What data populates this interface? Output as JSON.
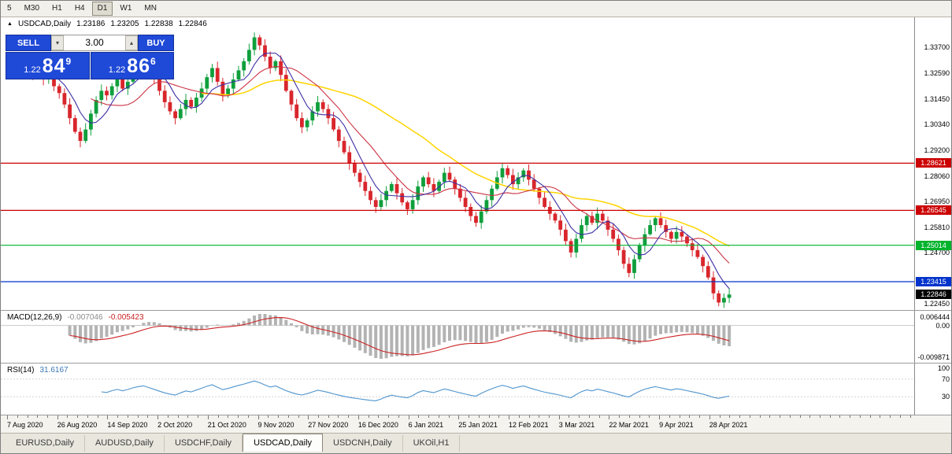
{
  "toolbar": {
    "timeframes": [
      "5",
      "M30",
      "H1",
      "H4",
      "D1",
      "W1",
      "MN"
    ],
    "active": "D1"
  },
  "header": {
    "symbol": "USDCAD,Daily",
    "open": "1.23186",
    "high": "1.23205",
    "low": "1.22838",
    "close": "1.22846"
  },
  "trade_panel": {
    "sell_label": "SELL",
    "buy_label": "BUY",
    "volume": "3.00",
    "volume_down_icon": "▾",
    "volume_up_icon": "▴",
    "sell_price": {
      "prefix": "1.22",
      "big": "84",
      "sup": "9"
    },
    "buy_price": {
      "prefix": "1.22",
      "big": "86",
      "sup": "6"
    }
  },
  "main_chart": {
    "price_min": 1.2217,
    "price_max": 1.3503,
    "y_axis_labels": [
      "1.33700",
      "1.32590",
      "1.31450",
      "1.30340",
      "1.29200",
      "1.28060",
      "1.26950",
      "1.25810",
      "1.24700",
      "1.22450"
    ],
    "hlines": [
      {
        "price": 1.28621,
        "label": "1.28621",
        "color": "#cc0000"
      },
      {
        "price": 1.26545,
        "label": "1.26545",
        "color": "#cc0000"
      },
      {
        "price": 1.25014,
        "label": "1.25014",
        "color": "#00b32c"
      },
      {
        "price": 1.23415,
        "label": "1.23415",
        "color": "#0033cc"
      }
    ],
    "current_price": {
      "price": 1.22846,
      "label": "1.22846",
      "color": "#000000"
    },
    "colors": {
      "up": "#0f9f3c",
      "down": "#d8262c",
      "ma_fast": "#3c2fa5",
      "ma_mid": "#cc3344",
      "ma_slow": "#ffd400"
    }
  },
  "chart_data": {
    "type": "candlestick",
    "symbol": "USDCAD",
    "timeframe": "Daily",
    "x_range": [
      "7 Aug 2020",
      "28 Apr 2021"
    ],
    "indicators": {
      "ma_periods": [
        6,
        13,
        34
      ],
      "macd": [
        12,
        26,
        9
      ],
      "rsi": [
        14
      ]
    },
    "closes": [
      1.329,
      1.3255,
      1.327,
      1.323,
      1.3245,
      1.32,
      1.317,
      1.312,
      1.306,
      1.3,
      1.296,
      1.301,
      1.308,
      1.314,
      1.318,
      1.316,
      1.32,
      1.323,
      1.319,
      1.322,
      1.326,
      1.329,
      1.331,
      1.327,
      1.323,
      1.318,
      1.313,
      1.309,
      1.306,
      1.31,
      1.314,
      1.311,
      1.315,
      1.319,
      1.324,
      1.328,
      1.322,
      1.316,
      1.319,
      1.323,
      1.327,
      1.331,
      1.336,
      1.3415,
      1.338,
      1.333,
      1.328,
      1.331,
      1.325,
      1.318,
      1.312,
      1.306,
      1.302,
      1.305,
      1.309,
      1.313,
      1.31,
      1.306,
      1.301,
      1.296,
      1.291,
      1.286,
      1.282,
      1.278,
      1.274,
      1.27,
      1.267,
      1.27,
      1.274,
      1.277,
      1.273,
      1.269,
      1.266,
      1.27,
      1.276,
      1.28,
      1.277,
      1.274,
      1.278,
      1.282,
      1.279,
      1.275,
      1.271,
      1.267,
      1.263,
      1.26,
      1.265,
      1.27,
      1.275,
      1.28,
      1.284,
      1.281,
      1.277,
      1.28,
      1.283,
      1.279,
      1.275,
      1.271,
      1.267,
      1.264,
      1.261,
      1.257,
      1.252,
      1.247,
      1.253,
      1.259,
      1.263,
      1.26,
      1.264,
      1.261,
      1.257,
      1.253,
      1.248,
      1.242,
      1.238,
      1.244,
      1.25,
      1.255,
      1.259,
      1.262,
      1.259,
      1.256,
      1.253,
      1.256,
      1.254,
      1.251,
      1.248,
      1.245,
      1.241,
      1.236,
      1.229,
      1.225,
      1.227,
      1.2285
    ]
  },
  "macd_panel": {
    "title": "MACD(12,26,9)",
    "value_main": "-0.007046",
    "value_signal": "-0.005423",
    "axis_labels": [
      "0.006444",
      "0.00",
      "-0.009871"
    ],
    "colors": {
      "histogram": "#b3b3b3",
      "signal": "#cc2222"
    }
  },
  "rsi_panel": {
    "title": "RSI(14)",
    "value": "31.6167",
    "axis_labels": [
      "100",
      "70",
      "30"
    ],
    "levels": [
      70,
      30
    ],
    "color": "#4f94cd"
  },
  "date_axis": [
    "7 Aug 2020",
    "26 Aug 2020",
    "14 Sep 2020",
    "2 Oct 2020",
    "21 Oct 2020",
    "9 Nov 2020",
    "27 Nov 2020",
    "16 Dec 2020",
    "6 Jan 2021",
    "25 Jan 2021",
    "12 Feb 2021",
    "3 Mar 2021",
    "22 Mar 2021",
    "9 Apr 2021",
    "28 Apr 2021"
  ],
  "tabs": {
    "items": [
      "EURUSD,Daily",
      "AUDUSD,Daily",
      "USDCHF,Daily",
      "USDCAD,Daily",
      "USDCNH,Daily",
      "UKOil,H1"
    ],
    "active_index": 3
  }
}
